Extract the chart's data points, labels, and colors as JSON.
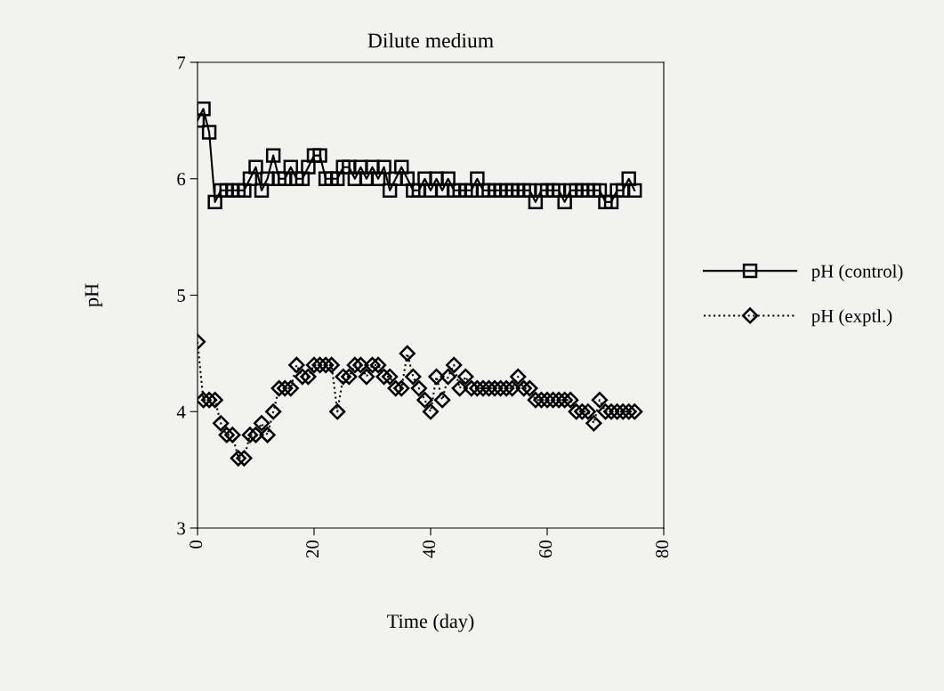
{
  "chart_data": {
    "type": "line",
    "title": "Dilute medium",
    "xlabel": "Time (day)",
    "ylabel": "pH",
    "x": [
      0,
      1,
      2,
      3,
      4,
      5,
      6,
      7,
      8,
      9,
      10,
      11,
      12,
      13,
      14,
      15,
      16,
      17,
      18,
      19,
      20,
      21,
      22,
      23,
      24,
      25,
      26,
      27,
      28,
      29,
      30,
      31,
      32,
      33,
      34,
      35,
      36,
      37,
      38,
      39,
      40,
      41,
      42,
      43,
      44,
      45,
      46,
      47,
      48,
      49,
      50,
      51,
      52,
      53,
      54,
      55,
      56,
      57,
      58,
      59,
      60,
      61,
      62,
      63,
      64,
      65,
      66,
      67,
      68,
      69,
      70,
      71,
      72,
      73,
      74,
      75
    ],
    "series": [
      {
        "name": "pH (control)",
        "color": "#000000",
        "marker": "square",
        "line_style": "solid",
        "values": [
          6.5,
          6.6,
          6.4,
          5.8,
          5.9,
          5.9,
          5.9,
          5.9,
          5.9,
          6.0,
          6.1,
          5.9,
          6.0,
          6.2,
          6.0,
          6.0,
          6.1,
          6.0,
          6.0,
          6.1,
          6.2,
          6.2,
          6.0,
          6.0,
          6.0,
          6.1,
          6.1,
          6.0,
          6.1,
          6.0,
          6.1,
          6.0,
          6.1,
          5.9,
          6.0,
          6.1,
          6.0,
          5.9,
          5.9,
          6.0,
          5.9,
          6.0,
          5.9,
          6.0,
          5.9,
          5.9,
          5.9,
          5.9,
          6.0,
          5.9,
          5.9,
          5.9,
          5.9,
          5.9,
          5.9,
          5.9,
          5.9,
          5.9,
          5.8,
          5.9,
          5.9,
          5.9,
          5.9,
          5.8,
          5.9,
          5.9,
          5.9,
          5.9,
          5.9,
          5.9,
          5.8,
          5.8,
          5.9,
          5.9,
          6.0,
          5.9
        ]
      },
      {
        "name": "pH (exptl.)",
        "color": "#000000",
        "marker": "diamond",
        "line_style": "dotted",
        "values": [
          4.6,
          4.1,
          4.1,
          4.1,
          3.9,
          3.8,
          3.8,
          3.6,
          3.6,
          3.8,
          3.8,
          3.9,
          3.8,
          4.0,
          4.2,
          4.2,
          4.2,
          4.4,
          4.3,
          4.3,
          4.4,
          4.4,
          4.4,
          4.4,
          4.0,
          4.3,
          4.3,
          4.4,
          4.4,
          4.3,
          4.4,
          4.4,
          4.3,
          4.3,
          4.2,
          4.2,
          4.5,
          4.3,
          4.2,
          4.1,
          4.0,
          4.3,
          4.1,
          4.3,
          4.4,
          4.2,
          4.3,
          4.2,
          4.2,
          4.2,
          4.2,
          4.2,
          4.2,
          4.2,
          4.2,
          4.3,
          4.2,
          4.2,
          4.1,
          4.1,
          4.1,
          4.1,
          4.1,
          4.1,
          4.1,
          4.0,
          4.0,
          4.0,
          3.9,
          4.1,
          4.0,
          4.0,
          4.0,
          4.0,
          4.0,
          4.0
        ]
      }
    ],
    "xlim": [
      0,
      80
    ],
    "xticks": [
      0,
      20,
      40,
      60,
      80
    ],
    "ylim": [
      3,
      7
    ],
    "yticks": [
      3,
      4,
      5,
      6,
      7
    ],
    "grid": false,
    "legend": "right"
  }
}
